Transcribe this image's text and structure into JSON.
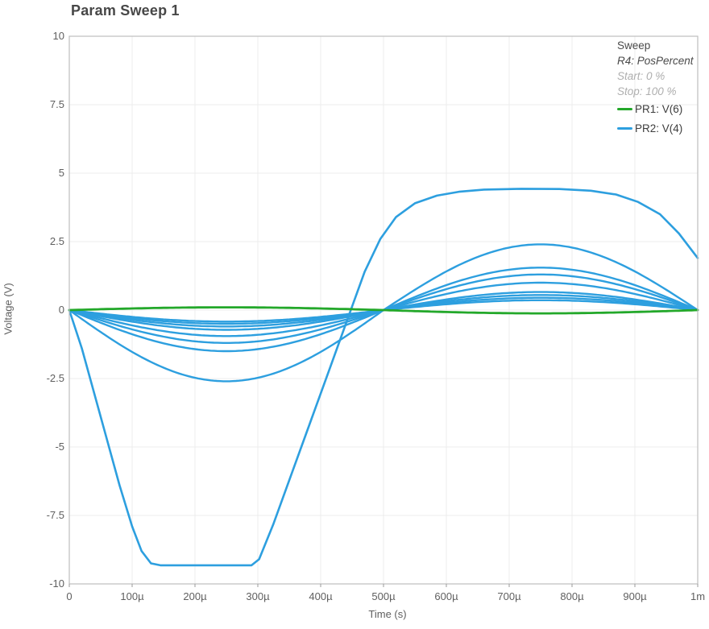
{
  "window": {
    "title": "Param Sweep 1"
  },
  "colors": {
    "pr1_green": "#23a82a",
    "pr2_blue": "#2d9fdf",
    "grid": "#ececec",
    "plot_border": "#bdbdbd",
    "tick_text": "#5f5f5f",
    "title_text": "#474747",
    "legend_muted": "#aeaeae"
  },
  "legend": {
    "header": "Sweep",
    "param": "R4: PosPercent",
    "start": "Start: 0 %",
    "stop": "Stop: 100 %",
    "entries": [
      {
        "label": "PR1: V(6)",
        "color": "#23a82a"
      },
      {
        "label": "PR2: V(4)",
        "color": "#2d9fdf"
      }
    ]
  },
  "chart_data": {
    "type": "line",
    "title": "Param Sweep 1",
    "xlabel": "Time (s)",
    "ylabel": "Voltage (V)",
    "x_unit": "microseconds",
    "xlim_us": [
      0,
      1000
    ],
    "ylim": [
      -10,
      10
    ],
    "grid": true,
    "legend_position": "top-right",
    "x_ticks": [
      {
        "us": 0,
        "label": "0"
      },
      {
        "us": 100,
        "label": "100µ"
      },
      {
        "us": 200,
        "label": "200µ"
      },
      {
        "us": 300,
        "label": "300µ"
      },
      {
        "us": 400,
        "label": "400µ"
      },
      {
        "us": 500,
        "label": "500µ"
      },
      {
        "us": 600,
        "label": "600µ"
      },
      {
        "us": 700,
        "label": "700µ"
      },
      {
        "us": 800,
        "label": "800µ"
      },
      {
        "us": 900,
        "label": "900µ"
      },
      {
        "us": 1000,
        "label": "1m"
      }
    ],
    "y_ticks": [
      {
        "v": 10,
        "label": "10"
      },
      {
        "v": 7.5,
        "label": "7.5"
      },
      {
        "v": 5,
        "label": "5"
      },
      {
        "v": 2.5,
        "label": "2.5"
      },
      {
        "v": 0,
        "label": "0"
      },
      {
        "v": -2.5,
        "label": "-2.5"
      },
      {
        "v": -5,
        "label": "-5"
      },
      {
        "v": -7.5,
        "label": "-7.5"
      },
      {
        "v": -10,
        "label": "-10"
      }
    ],
    "series": [
      {
        "name": "PR1: V(6)",
        "color": "#23a82a",
        "kind": "half_sine",
        "period_us": 1000,
        "first_half_peak_v": 0.1,
        "second_half_peak_v": -0.12
      },
      {
        "name": "PR2: V(4)",
        "color": "#2d9fdf",
        "kind": "sweep_family",
        "note": "one trace per R4 PosPercent step; min = dip near 250µs, max = peak near 750µs",
        "half_sine_traces": [
          {
            "min_v": -2.6,
            "max_v": 2.4
          },
          {
            "min_v": -1.5,
            "max_v": 1.55
          },
          {
            "min_v": -1.2,
            "max_v": 1.3
          },
          {
            "min_v": -0.95,
            "max_v": 1.0
          },
          {
            "min_v": -0.72,
            "max_v": 0.66
          },
          {
            "min_v": -0.6,
            "max_v": 0.55
          },
          {
            "min_v": -0.5,
            "max_v": 0.45
          },
          {
            "min_v": -0.42,
            "max_v": 0.36
          }
        ],
        "clipped_trace_points_us_v": [
          [
            0,
            0
          ],
          [
            20,
            -1.4
          ],
          [
            50,
            -3.9
          ],
          [
            80,
            -6.4
          ],
          [
            100,
            -7.9
          ],
          [
            115,
            -8.8
          ],
          [
            130,
            -9.25
          ],
          [
            145,
            -9.32
          ],
          [
            290,
            -9.32
          ],
          [
            302,
            -9.1
          ],
          [
            325,
            -7.8
          ],
          [
            355,
            -5.9
          ],
          [
            385,
            -4.0
          ],
          [
            415,
            -2.1
          ],
          [
            448,
            0
          ],
          [
            470,
            1.4
          ],
          [
            495,
            2.6
          ],
          [
            520,
            3.4
          ],
          [
            550,
            3.9
          ],
          [
            585,
            4.18
          ],
          [
            620,
            4.32
          ],
          [
            660,
            4.4
          ],
          [
            720,
            4.43
          ],
          [
            780,
            4.42
          ],
          [
            830,
            4.36
          ],
          [
            870,
            4.22
          ],
          [
            905,
            3.95
          ],
          [
            940,
            3.5
          ],
          [
            970,
            2.8
          ],
          [
            1000,
            1.9
          ]
        ]
      }
    ]
  }
}
